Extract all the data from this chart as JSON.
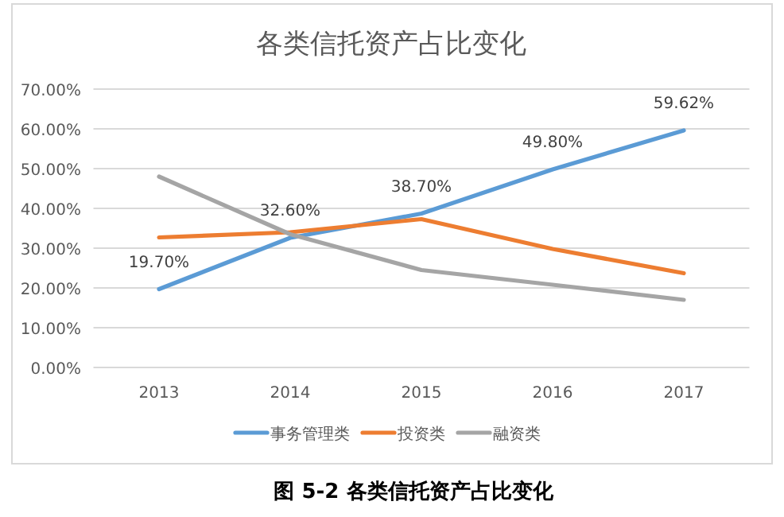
{
  "chart_data": {
    "type": "line",
    "title": "各类信托资产占比变化",
    "categories": [
      "2013",
      "2014",
      "2015",
      "2016",
      "2017"
    ],
    "series": [
      {
        "name": "事务管理类",
        "color": "#5b9bd5",
        "values": [
          19.7,
          32.6,
          38.7,
          49.8,
          59.62
        ],
        "value_labels": [
          "19.70%",
          "32.60%",
          "38.70%",
          "49.80%",
          "59.62%"
        ]
      },
      {
        "name": "投资类",
        "color": "#ed7d31",
        "values": [
          32.7,
          34.0,
          37.3,
          29.8,
          23.7
        ]
      },
      {
        "name": "融资类",
        "color": "#a5a5a5",
        "values": [
          48.0,
          33.5,
          24.5,
          20.8,
          17.0
        ]
      }
    ],
    "ylim": [
      0,
      70
    ],
    "yticks": [
      {
        "value": 0,
        "label": "0.00%"
      },
      {
        "value": 10,
        "label": "10.00%"
      },
      {
        "value": 20,
        "label": "20.00%"
      },
      {
        "value": 30,
        "label": "30.00%"
      },
      {
        "value": 40,
        "label": "40.00%"
      },
      {
        "value": 50,
        "label": "50.00%"
      },
      {
        "value": 60,
        "label": "60.00%"
      },
      {
        "value": 70,
        "label": "70.00%"
      }
    ],
    "grid": "y",
    "legend": "bottom",
    "marker": "none",
    "line_style": "solid",
    "annotations": [
      "图 5-2 各类信托资产占比变化"
    ]
  }
}
